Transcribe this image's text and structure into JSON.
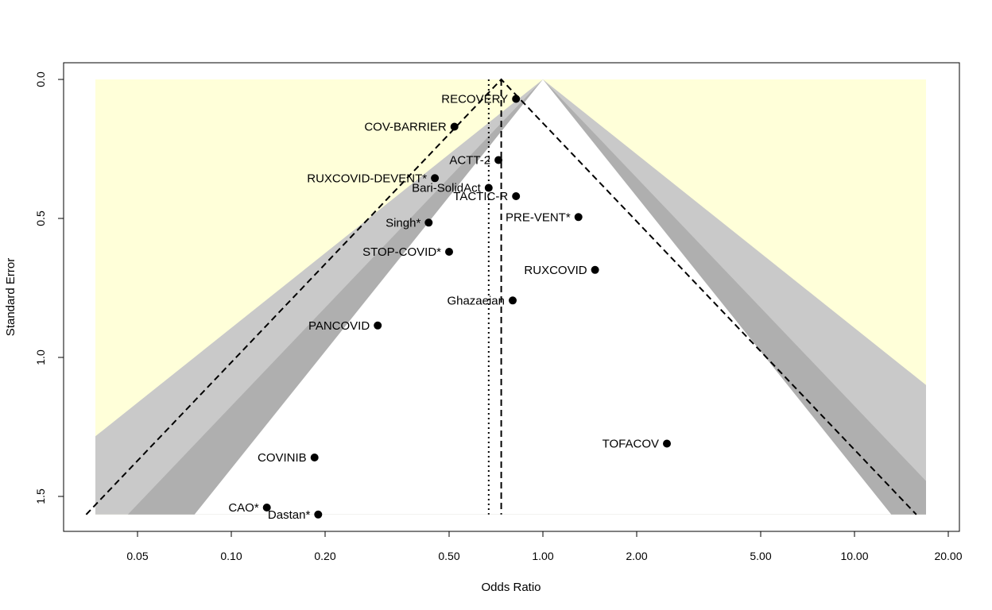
{
  "chart_data": {
    "type": "scatter",
    "title": "",
    "xlabel": "Odds Ratio",
    "ylabel": "Standard Error",
    "x_scale": "log",
    "x_ticks": [
      0.05,
      0.1,
      0.2,
      0.5,
      1.0,
      2.0,
      5.0,
      10.0,
      20.0
    ],
    "x_tick_labels": [
      "0.05",
      "0.10",
      "0.20",
      "0.50",
      "1.00",
      "2.00",
      "5.00",
      "10.00",
      "20.00"
    ],
    "y_ticks": [
      0.0,
      0.5,
      1.0,
      1.5
    ],
    "y_tick_labels": [
      "0.0",
      "0.5",
      "1.0",
      "1.5"
    ],
    "y_reversed": true,
    "xlim": [
      0.034,
      20.0
    ],
    "ylim": [
      1.62,
      0.0
    ],
    "grid": false,
    "legend": "none",
    "colors": {
      "significance_region": "#ffffd9",
      "contour_outer": "#c9c9c9",
      "contour_inner": "#afafaf",
      "points": "#000000"
    },
    "pooled_estimate_or": 0.735,
    "alternate_estimate_or": 0.67,
    "points": [
      {
        "label": "RECOVERY",
        "or": 0.82,
        "se": 0.07
      },
      {
        "label": "COV-BARRIER",
        "or": 0.52,
        "se": 0.17
      },
      {
        "label": "ACTT-2",
        "or": 0.72,
        "se": 0.29
      },
      {
        "label": "RUXCOVID-DEVENT*",
        "or": 0.45,
        "se": 0.355
      },
      {
        "label": "Bari-SolidAct",
        "or": 0.67,
        "se": 0.39
      },
      {
        "label": "TACTIC-R",
        "or": 0.82,
        "se": 0.42
      },
      {
        "label": "PRE-VENT*",
        "or": 1.3,
        "se": 0.495
      },
      {
        "label": "Singh*",
        "or": 0.43,
        "se": 0.515
      },
      {
        "label": "STOP-COVID*",
        "or": 0.5,
        "se": 0.62
      },
      {
        "label": "RUXCOVID",
        "or": 1.47,
        "se": 0.685
      },
      {
        "label": "Ghazaeian",
        "or": 0.8,
        "se": 0.795
      },
      {
        "label": "PANCOVID",
        "or": 0.295,
        "se": 0.885
      },
      {
        "label": "TOFACOV",
        "or": 2.5,
        "se": 1.31
      },
      {
        "label": "COVINIB",
        "or": 0.185,
        "se": 1.36
      },
      {
        "label": "CAO*",
        "or": 0.13,
        "se": 1.54
      },
      {
        "label": "Dastan*",
        "or": 0.19,
        "se": 1.565
      }
    ]
  }
}
